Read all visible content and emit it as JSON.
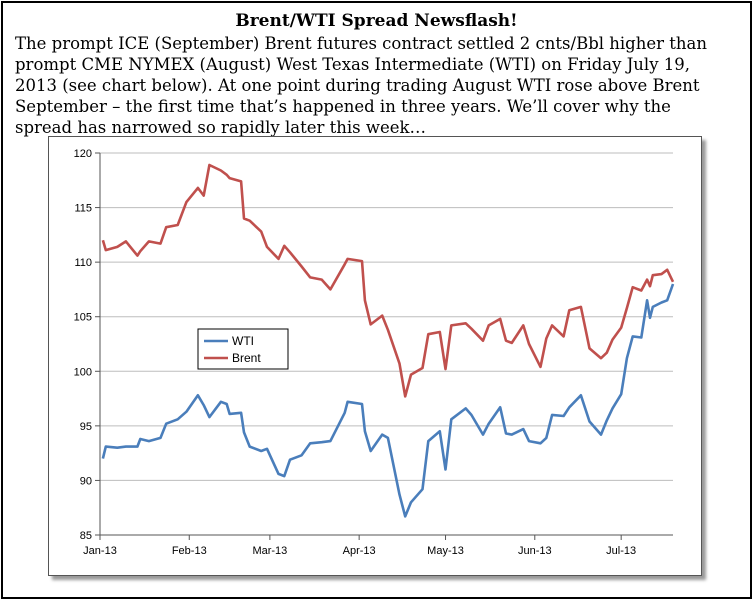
{
  "headline": "Brent/WTI Spread Newsflash!",
  "body_lines": [
    "The prompt ICE (September) Brent futures contract settled 2 cnts/Bbl higher than",
    "prompt CME NYMEX (August) West Texas Intermediate (WTI) on Friday July 19,",
    "2013 (see chart below). At one point during trading August WTI rose above Brent",
    "September – the first time that’s happened in three years. We’ll cover why the",
    "spread has narrowed so rapidly later this week…"
  ],
  "chart_data": {
    "type": "line",
    "title": "",
    "xlabel": "",
    "ylabel": "",
    "ylim": [
      85,
      120
    ],
    "yticks": [
      85,
      90,
      95,
      100,
      105,
      110,
      115,
      120
    ],
    "xlim": [
      "2013-01-02",
      "2013-07-19"
    ],
    "xticks": [
      {
        "label": "Jan-13",
        "date": "2013-01-01"
      },
      {
        "label": "Feb-13",
        "date": "2013-02-01"
      },
      {
        "label": "Mar-13",
        "date": "2013-03-01"
      },
      {
        "label": "Apr-13",
        "date": "2013-04-01"
      },
      {
        "label": "May-13",
        "date": "2013-05-01"
      },
      {
        "label": "Jun-13",
        "date": "2013-06-01"
      },
      {
        "label": "Jul-13",
        "date": "2013-07-01"
      }
    ],
    "grid": "horizontal",
    "legend_position": "center-left",
    "series": [
      {
        "name": "WTI",
        "color": "#4a7ebb",
        "points": [
          [
            "2013-01-02",
            92.0
          ],
          [
            "2013-01-03",
            93.1
          ],
          [
            "2013-01-07",
            93.0
          ],
          [
            "2013-01-10",
            93.1
          ],
          [
            "2013-01-14",
            93.1
          ],
          [
            "2013-01-15",
            93.8
          ],
          [
            "2013-01-18",
            93.6
          ],
          [
            "2013-01-22",
            93.9
          ],
          [
            "2013-01-24",
            95.2
          ],
          [
            "2013-01-28",
            95.6
          ],
          [
            "2013-01-31",
            96.3
          ],
          [
            "2013-02-04",
            97.8
          ],
          [
            "2013-02-06",
            96.9
          ],
          [
            "2013-02-08",
            95.8
          ],
          [
            "2013-02-12",
            97.2
          ],
          [
            "2013-02-14",
            97.0
          ],
          [
            "2013-02-15",
            96.1
          ],
          [
            "2013-02-19",
            96.2
          ],
          [
            "2013-02-20",
            94.4
          ],
          [
            "2013-02-22",
            93.1
          ],
          [
            "2013-02-26",
            92.7
          ],
          [
            "2013-02-28",
            92.9
          ],
          [
            "2013-03-04",
            90.6
          ],
          [
            "2013-03-06",
            90.4
          ],
          [
            "2013-03-08",
            91.9
          ],
          [
            "2013-03-12",
            92.3
          ],
          [
            "2013-03-15",
            93.4
          ],
          [
            "2013-03-19",
            93.5
          ],
          [
            "2013-03-22",
            93.6
          ],
          [
            "2013-03-27",
            96.2
          ],
          [
            "2013-03-28",
            97.2
          ],
          [
            "2013-04-02",
            97.0
          ],
          [
            "2013-04-03",
            94.5
          ],
          [
            "2013-04-05",
            92.7
          ],
          [
            "2013-04-09",
            94.2
          ],
          [
            "2013-04-11",
            93.9
          ],
          [
            "2013-04-15",
            88.7
          ],
          [
            "2013-04-17",
            86.7
          ],
          [
            "2013-04-19",
            88.0
          ],
          [
            "2013-04-23",
            89.2
          ],
          [
            "2013-04-25",
            93.6
          ],
          [
            "2013-04-29",
            94.5
          ],
          [
            "2013-05-01",
            91.0
          ],
          [
            "2013-05-03",
            95.6
          ],
          [
            "2013-05-08",
            96.6
          ],
          [
            "2013-05-10",
            96.0
          ],
          [
            "2013-05-14",
            94.2
          ],
          [
            "2013-05-16",
            95.2
          ],
          [
            "2013-05-20",
            96.7
          ],
          [
            "2013-05-22",
            94.3
          ],
          [
            "2013-05-24",
            94.2
          ],
          [
            "2013-05-28",
            94.7
          ],
          [
            "2013-05-30",
            93.6
          ],
          [
            "2013-06-03",
            93.4
          ],
          [
            "2013-06-05",
            93.9
          ],
          [
            "2013-06-07",
            96.0
          ],
          [
            "2013-06-11",
            95.9
          ],
          [
            "2013-06-13",
            96.7
          ],
          [
            "2013-06-17",
            97.8
          ],
          [
            "2013-06-20",
            95.4
          ],
          [
            "2013-06-24",
            94.2
          ],
          [
            "2013-06-26",
            95.5
          ],
          [
            "2013-06-28",
            96.6
          ],
          [
            "2013-07-01",
            97.9
          ],
          [
            "2013-07-03",
            101.2
          ],
          [
            "2013-07-05",
            103.2
          ],
          [
            "2013-07-08",
            103.1
          ],
          [
            "2013-07-10",
            106.5
          ],
          [
            "2013-07-11",
            104.9
          ],
          [
            "2013-07-12",
            105.9
          ],
          [
            "2013-07-15",
            106.3
          ],
          [
            "2013-07-17",
            106.5
          ],
          [
            "2013-07-19",
            108.0
          ]
        ]
      },
      {
        "name": "Brent",
        "color": "#c0504d",
        "points": [
          [
            "2013-01-02",
            112.0
          ],
          [
            "2013-01-03",
            111.1
          ],
          [
            "2013-01-07",
            111.4
          ],
          [
            "2013-01-10",
            111.9
          ],
          [
            "2013-01-14",
            110.6
          ],
          [
            "2013-01-15",
            111.0
          ],
          [
            "2013-01-18",
            111.9
          ],
          [
            "2013-01-22",
            111.7
          ],
          [
            "2013-01-24",
            113.2
          ],
          [
            "2013-01-28",
            113.4
          ],
          [
            "2013-01-31",
            115.5
          ],
          [
            "2013-02-04",
            116.8
          ],
          [
            "2013-02-06",
            116.1
          ],
          [
            "2013-02-08",
            118.9
          ],
          [
            "2013-02-12",
            118.4
          ],
          [
            "2013-02-14",
            118.0
          ],
          [
            "2013-02-15",
            117.7
          ],
          [
            "2013-02-19",
            117.4
          ],
          [
            "2013-02-20",
            114.0
          ],
          [
            "2013-02-22",
            113.8
          ],
          [
            "2013-02-26",
            112.8
          ],
          [
            "2013-02-28",
            111.4
          ],
          [
            "2013-03-04",
            110.3
          ],
          [
            "2013-03-06",
            111.5
          ],
          [
            "2013-03-08",
            110.9
          ],
          [
            "2013-03-12",
            109.6
          ],
          [
            "2013-03-15",
            108.6
          ],
          [
            "2013-03-19",
            108.4
          ],
          [
            "2013-03-22",
            107.5
          ],
          [
            "2013-03-27",
            109.8
          ],
          [
            "2013-03-28",
            110.3
          ],
          [
            "2013-04-02",
            110.1
          ],
          [
            "2013-04-03",
            106.5
          ],
          [
            "2013-04-05",
            104.3
          ],
          [
            "2013-04-09",
            105.1
          ],
          [
            "2013-04-11",
            103.8
          ],
          [
            "2013-04-15",
            100.7
          ],
          [
            "2013-04-17",
            97.7
          ],
          [
            "2013-04-19",
            99.7
          ],
          [
            "2013-04-23",
            100.3
          ],
          [
            "2013-04-25",
            103.4
          ],
          [
            "2013-04-29",
            103.6
          ],
          [
            "2013-05-01",
            100.2
          ],
          [
            "2013-05-03",
            104.2
          ],
          [
            "2013-05-08",
            104.4
          ],
          [
            "2013-05-10",
            103.9
          ],
          [
            "2013-05-14",
            102.8
          ],
          [
            "2013-05-16",
            104.2
          ],
          [
            "2013-05-20",
            104.8
          ],
          [
            "2013-05-22",
            102.8
          ],
          [
            "2013-05-24",
            102.6
          ],
          [
            "2013-05-28",
            104.2
          ],
          [
            "2013-05-30",
            102.5
          ],
          [
            "2013-06-03",
            100.4
          ],
          [
            "2013-06-05",
            103.0
          ],
          [
            "2013-06-07",
            104.2
          ],
          [
            "2013-06-11",
            103.2
          ],
          [
            "2013-06-13",
            105.6
          ],
          [
            "2013-06-17",
            105.9
          ],
          [
            "2013-06-20",
            102.1
          ],
          [
            "2013-06-24",
            101.2
          ],
          [
            "2013-06-26",
            101.7
          ],
          [
            "2013-06-28",
            102.9
          ],
          [
            "2013-07-01",
            104.0
          ],
          [
            "2013-07-03",
            105.8
          ],
          [
            "2013-07-05",
            107.7
          ],
          [
            "2013-07-08",
            107.4
          ],
          [
            "2013-07-10",
            108.4
          ],
          [
            "2013-07-11",
            107.8
          ],
          [
            "2013-07-12",
            108.8
          ],
          [
            "2013-07-15",
            108.9
          ],
          [
            "2013-07-17",
            109.3
          ],
          [
            "2013-07-19",
            108.2
          ]
        ]
      }
    ]
  }
}
